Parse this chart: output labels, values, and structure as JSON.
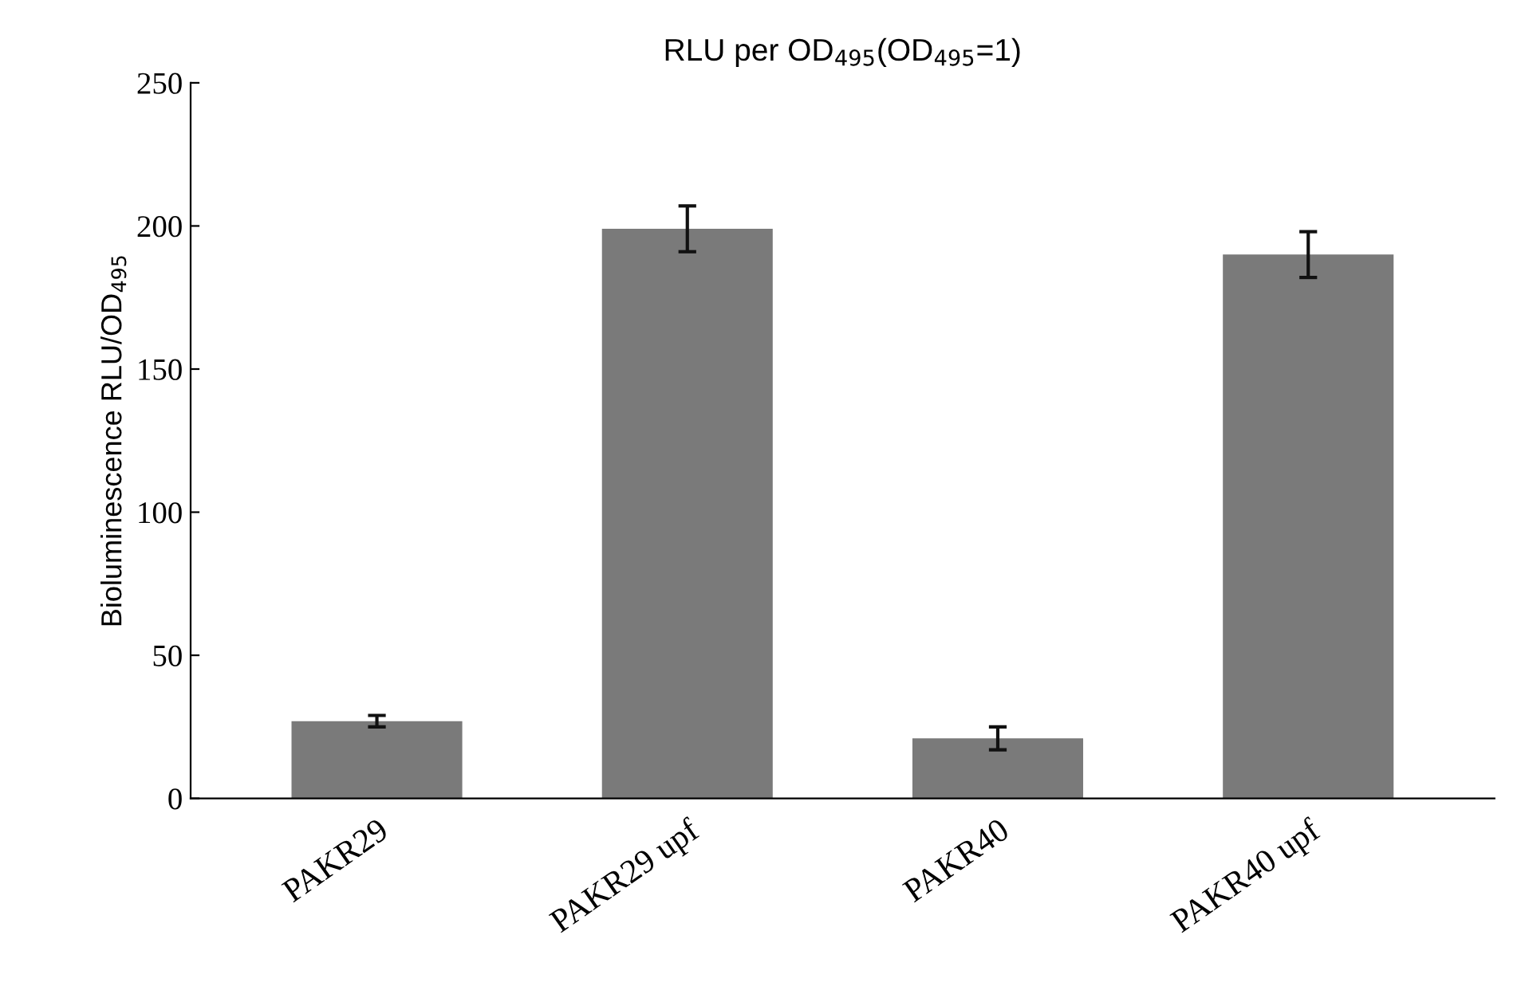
{
  "chart_data": {
    "type": "bar",
    "title": "RLU per OD$_{495}$(OD$_{495}$=1)",
    "ylabel": "Bioluminescence RLU/OD$_{495}$",
    "categories": [
      "PAKR29",
      "PAKR29 upf",
      "PAKR40",
      "PAKR40 upf"
    ],
    "values": [
      27,
      199,
      21,
      190
    ],
    "errors": [
      2,
      8,
      4,
      8
    ],
    "color": "#7a7a7a",
    "ylim": [
      0,
      250
    ],
    "yticks": [
      0,
      50,
      100,
      150,
      200,
      250
    ],
    "grid": false,
    "legend": false
  }
}
